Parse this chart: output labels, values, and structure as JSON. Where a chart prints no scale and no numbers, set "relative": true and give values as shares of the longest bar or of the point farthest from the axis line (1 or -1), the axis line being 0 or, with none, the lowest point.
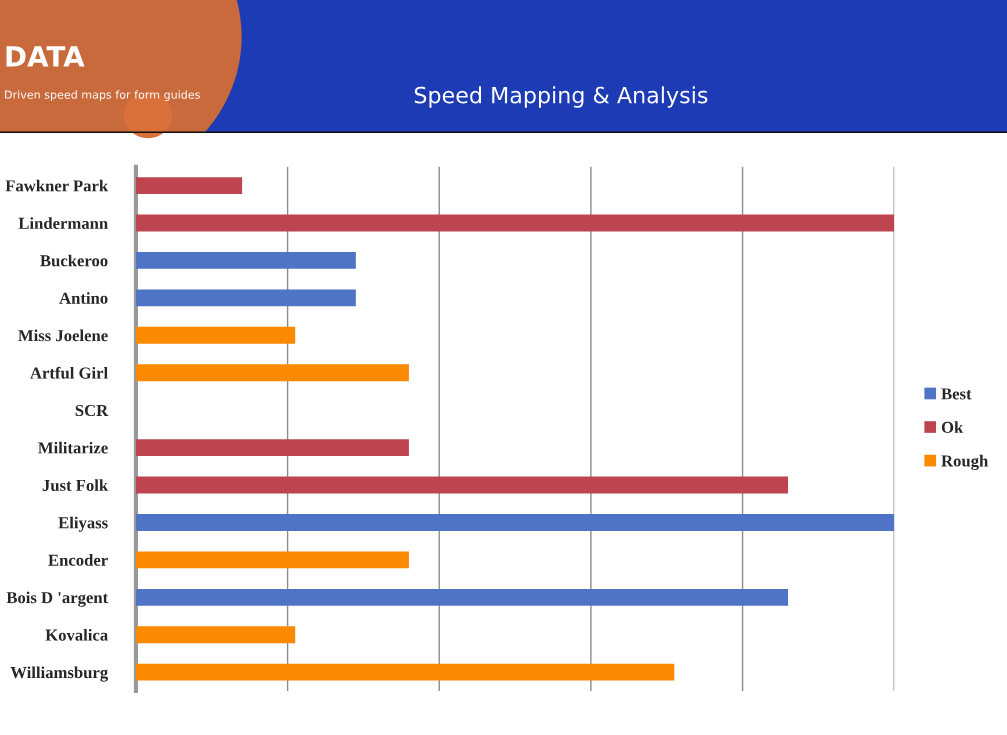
{
  "chart_data": {
    "type": "bar",
    "orientation": "horizontal",
    "stacked": true,
    "relative": true,
    "title": "Speed Mapping & Analysis",
    "annotations": [
      "DATA",
      "Driven speed maps for form guides"
    ],
    "categories": [
      "Fawkner Park",
      "Lindermann",
      "Buckeroo",
      "Antino",
      "Miss Joelene",
      "Artful Girl",
      "SCR",
      "Militarize",
      "Just Folk",
      "Eliyass",
      "Encoder",
      "Bois D 'argent",
      "Kovalica",
      "Williamsburg"
    ],
    "series": [
      {
        "name": "Best",
        "color": "#4f74c6",
        "values": [
          null,
          null,
          0.29,
          0.29,
          null,
          null,
          null,
          null,
          null,
          1,
          null,
          0.86,
          null,
          null
        ]
      },
      {
        "name": "Ok",
        "color": "#be4450",
        "values": [
          0.14,
          1,
          null,
          null,
          null,
          null,
          null,
          0.36,
          0.86,
          null,
          null,
          null,
          null,
          null
        ]
      },
      {
        "name": "Rough",
        "color": "#fb8a00",
        "values": [
          null,
          null,
          null,
          null,
          0.21,
          0.36,
          null,
          null,
          null,
          null,
          0.36,
          null,
          0.21,
          0.71
        ]
      }
    ],
    "grid": "x",
    "legend": "right",
    "tick_labels": "y"
  }
}
